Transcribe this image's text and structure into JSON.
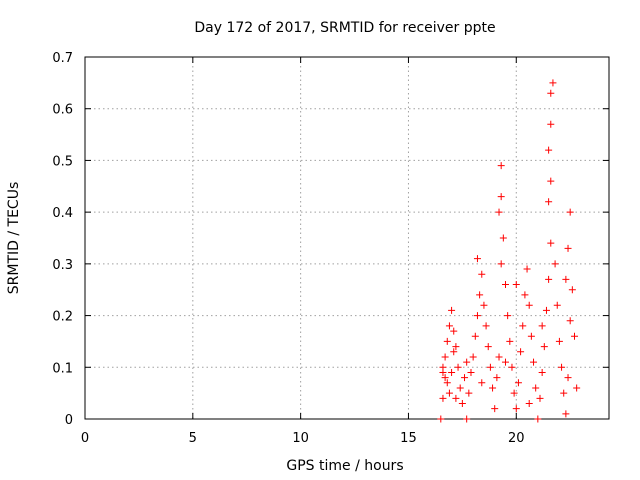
{
  "chart_data": {
    "type": "scatter",
    "title": "Day 172 of 2017, SRMTID for receiver ppte",
    "xlabel": "GPS time / hours",
    "ylabel": "SRMTID / TECUs",
    "xlim": [
      0,
      24.3
    ],
    "ylim": [
      0,
      0.7
    ],
    "xticks": [
      "0",
      "5",
      "10",
      "15",
      "20"
    ],
    "yticks": [
      "0",
      "0.1",
      "0.2",
      "0.3",
      "0.4",
      "0.5",
      "0.6",
      "0.7"
    ],
    "grid": true,
    "marker": "plus",
    "marker_color": "#ff0000",
    "series": [
      {
        "name": "SRMTID",
        "points": [
          [
            16.5,
            0.0
          ],
          [
            17.7,
            0.0
          ],
          [
            16.6,
            0.04
          ],
          [
            16.7,
            0.08
          ],
          [
            16.6,
            0.1
          ],
          [
            16.7,
            0.12
          ],
          [
            16.8,
            0.07
          ],
          [
            16.9,
            0.05
          ],
          [
            17.0,
            0.09
          ],
          [
            17.1,
            0.13
          ],
          [
            16.8,
            0.15
          ],
          [
            16.9,
            0.18
          ],
          [
            17.0,
            0.21
          ],
          [
            17.1,
            0.17
          ],
          [
            17.2,
            0.14
          ],
          [
            17.3,
            0.1
          ],
          [
            17.4,
            0.06
          ],
          [
            17.5,
            0.03
          ],
          [
            17.6,
            0.08
          ],
          [
            17.7,
            0.11
          ],
          [
            17.8,
            0.05
          ],
          [
            17.9,
            0.09
          ],
          [
            18.0,
            0.12
          ],
          [
            18.1,
            0.16
          ],
          [
            18.2,
            0.2
          ],
          [
            18.3,
            0.24
          ],
          [
            18.4,
            0.28
          ],
          [
            18.2,
            0.31
          ],
          [
            18.5,
            0.22
          ],
          [
            18.6,
            0.18
          ],
          [
            18.7,
            0.14
          ],
          [
            18.8,
            0.1
          ],
          [
            18.9,
            0.06
          ],
          [
            19.0,
            0.02
          ],
          [
            19.1,
            0.08
          ],
          [
            19.2,
            0.12
          ],
          [
            19.3,
            0.3
          ],
          [
            19.2,
            0.4
          ],
          [
            19.3,
            0.43
          ],
          [
            19.3,
            0.49
          ],
          [
            19.4,
            0.35
          ],
          [
            19.5,
            0.26
          ],
          [
            19.6,
            0.2
          ],
          [
            19.7,
            0.15
          ],
          [
            19.8,
            0.1
          ],
          [
            19.9,
            0.05
          ],
          [
            20.0,
            0.02
          ],
          [
            20.1,
            0.07
          ],
          [
            20.2,
            0.13
          ],
          [
            20.3,
            0.18
          ],
          [
            20.4,
            0.24
          ],
          [
            20.5,
            0.29
          ],
          [
            20.6,
            0.22
          ],
          [
            20.7,
            0.16
          ],
          [
            20.8,
            0.11
          ],
          [
            20.9,
            0.06
          ],
          [
            21.0,
            0.0
          ],
          [
            21.1,
            0.04
          ],
          [
            21.2,
            0.09
          ],
          [
            21.3,
            0.14
          ],
          [
            21.4,
            0.21
          ],
          [
            21.5,
            0.27
          ],
          [
            21.6,
            0.34
          ],
          [
            21.5,
            0.42
          ],
          [
            21.6,
            0.46
          ],
          [
            21.5,
            0.52
          ],
          [
            21.6,
            0.57
          ],
          [
            21.6,
            0.63
          ],
          [
            21.7,
            0.65
          ],
          [
            21.8,
            0.3
          ],
          [
            21.9,
            0.22
          ],
          [
            22.0,
            0.15
          ],
          [
            22.1,
            0.1
          ],
          [
            22.2,
            0.05
          ],
          [
            22.3,
            0.01
          ],
          [
            22.4,
            0.08
          ],
          [
            22.3,
            0.27
          ],
          [
            22.4,
            0.33
          ],
          [
            22.5,
            0.4
          ],
          [
            22.6,
            0.25
          ],
          [
            22.7,
            0.16
          ],
          [
            22.8,
            0.06
          ],
          [
            16.6,
            0.09
          ],
          [
            17.2,
            0.04
          ],
          [
            18.4,
            0.07
          ],
          [
            19.5,
            0.11
          ],
          [
            20.6,
            0.03
          ],
          [
            21.2,
            0.18
          ],
          [
            22.5,
            0.19
          ],
          [
            20.0,
            0.26
          ]
        ]
      }
    ]
  }
}
